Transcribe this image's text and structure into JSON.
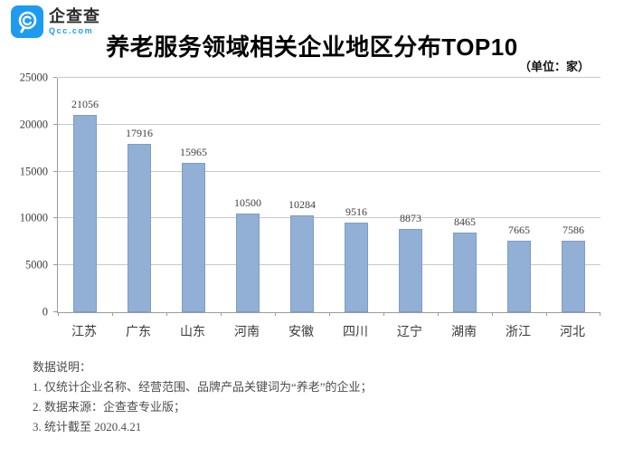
{
  "logo": {
    "brand": "企查查",
    "domain": "Qcc.com",
    "brand_color": "#1e9bf0",
    "icon": "qcc-magnifier-icon"
  },
  "header": {
    "title": "养老服务领域相关企业地区分布TOP10",
    "unit_note": "（单位：家）"
  },
  "chart_data": {
    "type": "bar",
    "title": "养老服务领域相关企业地区分布TOP10",
    "unit": "家",
    "categories": [
      "江苏",
      "广东",
      "山东",
      "河南",
      "安徽",
      "四川",
      "辽宁",
      "湖南",
      "浙江",
      "河北"
    ],
    "values": [
      21056,
      17916,
      15965,
      10500,
      10284,
      9516,
      8873,
      8465,
      7665,
      7586
    ],
    "xlabel": "",
    "ylabel": "",
    "ylim": [
      0,
      25000
    ],
    "yticks": [
      0,
      5000,
      10000,
      15000,
      20000,
      25000
    ],
    "grid": true,
    "legend": false,
    "data_labels": true,
    "bar_color": "#92afd5",
    "bar_border_color": "#7e9cc6",
    "gridline_color": "#c9c9c9",
    "axis_color": "#9b9b9b"
  },
  "footnotes": {
    "heading": "数据说明：",
    "lines": [
      "1. 仅统计企业名称、经营范围、品牌产品关键词为“养老”的企业；",
      "2. 数据来源：企查查专业版；",
      "3. 统计截至 2020.4.21"
    ]
  }
}
